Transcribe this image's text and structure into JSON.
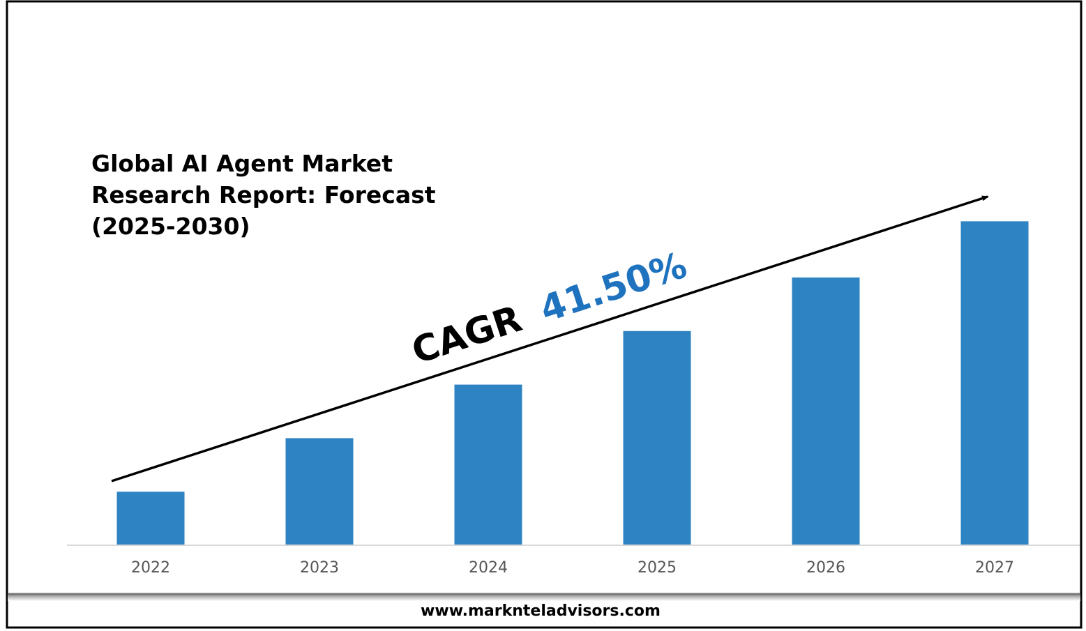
{
  "chart_data": {
    "type": "bar",
    "title_lines": [
      "Global AI Agent Market",
      "Research Report: Forecast",
      "(2025-2030)"
    ],
    "categories": [
      "2022",
      "2023",
      "2024",
      "2025",
      "2026",
      "2027"
    ],
    "values": [
      1,
      2,
      3,
      4,
      5,
      6.05
    ],
    "value_note_visible": false,
    "xlabel": "",
    "ylabel": "",
    "grid": false,
    "bar_color": "#2E83C3",
    "annotation": {
      "label": "CAGR",
      "value": "41.50%",
      "value_color": "#1F72BE"
    }
  },
  "footer": {
    "url": "www.marknteladvisors.com"
  }
}
